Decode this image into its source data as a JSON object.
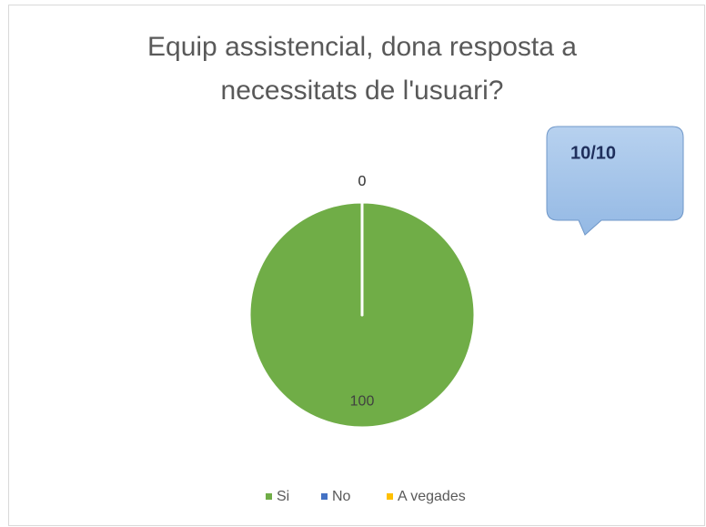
{
  "chart_data": {
    "type": "pie",
    "title": "Equip assistencial, dona resposta a necessitats de l'usuari?",
    "categories": [
      "Si",
      "No",
      "A vegades"
    ],
    "values": [
      100,
      0,
      0
    ],
    "colors": [
      "#70ad47",
      "#4472c4",
      "#ffc000"
    ],
    "legend": "bottom",
    "annotation": "10/10"
  }
}
